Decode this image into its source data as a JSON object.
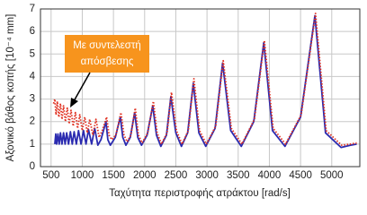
{
  "chart_data": {
    "type": "line",
    "xlabel": "Ταχύτητα περιστροφής ατράκτου [rad/s]",
    "ylabel": "Αξονικό βάθος κοπής [10⁻⁴ mm]",
    "xlim": [
      330,
      5450
    ],
    "xticks": [
      500,
      1000,
      1500,
      2000,
      2500,
      3000,
      3500,
      4000,
      4500,
      5000
    ],
    "ylim": [
      0,
      7
    ],
    "yticks": [
      0,
      1,
      2,
      3,
      4,
      5,
      6,
      7
    ],
    "grid": true,
    "annotation": [
      "Με συντελεστή",
      "απόσβεσης"
    ],
    "series": [
      {
        "color": "#2b2bb0",
        "style": "solid",
        "x": [
          560,
          575,
          590,
          610,
          630,
          650,
          675,
          700,
          725,
          750,
          780,
          810,
          840,
          870,
          905,
          940,
          980,
          1020,
          1060,
          1100,
          1150,
          1200,
          1250,
          1300,
          1380,
          1410,
          1450,
          1530,
          1610,
          1650,
          1700,
          1770,
          1840,
          1890,
          1950,
          2040,
          2130,
          2190,
          2260,
          2350,
          2420,
          2500,
          2590,
          2690,
          2780,
          2870,
          2980,
          3130,
          3250,
          3380,
          3550,
          3750,
          3910,
          4050,
          4250,
          4500,
          4730,
          4900,
          5150,
          5300,
          5400
        ],
        "values": [
          1.0,
          1.45,
          1.0,
          1.45,
          1.0,
          1.5,
          1.0,
          1.5,
          1.0,
          1.5,
          1.0,
          1.55,
          1.0,
          1.55,
          1.0,
          1.6,
          1.0,
          1.6,
          1.0,
          1.65,
          1.0,
          1.7,
          0.95,
          1.2,
          2.0,
          1.2,
          0.95,
          1.3,
          2.2,
          1.3,
          0.95,
          1.3,
          2.4,
          1.3,
          0.95,
          1.4,
          2.7,
          1.4,
          0.9,
          1.4,
          3.1,
          1.5,
          0.9,
          1.5,
          3.7,
          1.5,
          0.9,
          1.7,
          4.6,
          1.6,
          0.9,
          2.0,
          5.5,
          1.6,
          0.9,
          2.2,
          6.7,
          1.5,
          0.85,
          0.95,
          1.0
        ]
      },
      {
        "color": "#e03020",
        "style": "dotted",
        "x": [
          540,
          560,
          580,
          600,
          625,
          650,
          675,
          700,
          730,
          760,
          790,
          820,
          855,
          890,
          925,
          960,
          1000,
          1040,
          1080,
          1120,
          1170,
          1220,
          1270,
          1320,
          1390,
          1430,
          1470,
          1540,
          1620,
          1670,
          1720,
          1780,
          1850,
          1900,
          1960,
          2050,
          2140,
          2200,
          2270,
          2360,
          2430,
          2510,
          2600,
          2700,
          2790,
          2880,
          2990,
          3140,
          3260,
          3390,
          3560,
          3760,
          3920,
          4060,
          4260,
          4510,
          4740,
          4910,
          5160,
          5300,
          5400
        ],
        "values": [
          2.8,
          3.0,
          2.3,
          2.9,
          2.2,
          2.8,
          2.1,
          2.7,
          2.0,
          2.6,
          1.9,
          2.5,
          1.8,
          2.4,
          1.7,
          2.3,
          1.6,
          2.2,
          1.5,
          2.1,
          1.4,
          2.1,
          1.3,
          1.6,
          2.2,
          1.4,
          1.2,
          1.4,
          2.4,
          1.4,
          1.1,
          1.4,
          2.6,
          1.4,
          1.05,
          1.5,
          2.9,
          1.5,
          1.0,
          1.5,
          3.3,
          1.6,
          1.0,
          1.6,
          3.9,
          1.6,
          1.0,
          1.8,
          4.7,
          1.7,
          1.0,
          2.1,
          5.6,
          1.7,
          1.0,
          2.3,
          6.8,
          1.6,
          0.95,
          1.0,
          1.05
        ]
      }
    ]
  }
}
